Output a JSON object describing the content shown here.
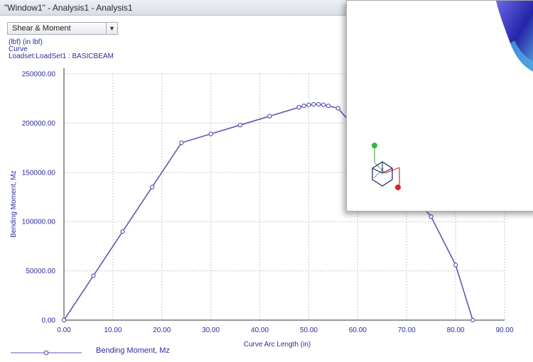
{
  "window": {
    "title": "\"Window1\" - Analysis1 - Analysis1"
  },
  "toolbar": {
    "selector_value": "Shear & Moment"
  },
  "info": {
    "units": "(lbf)  (in lbf)",
    "type": "Curve",
    "loadset": "Loadset:LoadSet1 :  BASICBEAM"
  },
  "legend": {
    "label": "Bending Moment, Mz"
  },
  "colors": {
    "series": "#5a5ab8",
    "axis": "#2c2ca0",
    "grid": "#c8c8c8"
  },
  "chart_data": {
    "type": "line",
    "xlabel": "Curve Arc Length (in)",
    "ylabel": "Bending Moment, Mz",
    "xlim": [
      0,
      90
    ],
    "ylim": [
      0,
      250000
    ],
    "x_ticks": [
      "0.00",
      "10.00",
      "20.00",
      "30.00",
      "40.00",
      "50.00",
      "60.00",
      "70.00",
      "80.00",
      "90.00"
    ],
    "y_ticks": [
      "0.00",
      "50000.00",
      "100000.00",
      "150000.00",
      "200000.00",
      "250000.00"
    ],
    "grid": true,
    "series": [
      {
        "name": "Bending Moment, Mz",
        "x": [
          0,
          6,
          12,
          18,
          24,
          30,
          36,
          42,
          48,
          49,
          50,
          51,
          52,
          53,
          54,
          56,
          75,
          80,
          83.5
        ],
        "y": [
          0,
          45000,
          90000,
          135000,
          180000,
          189000,
          198000,
          207000,
          216000,
          217500,
          218500,
          219000,
          219000,
          218500,
          217500,
          215000,
          105000,
          56000,
          0
        ]
      }
    ]
  }
}
